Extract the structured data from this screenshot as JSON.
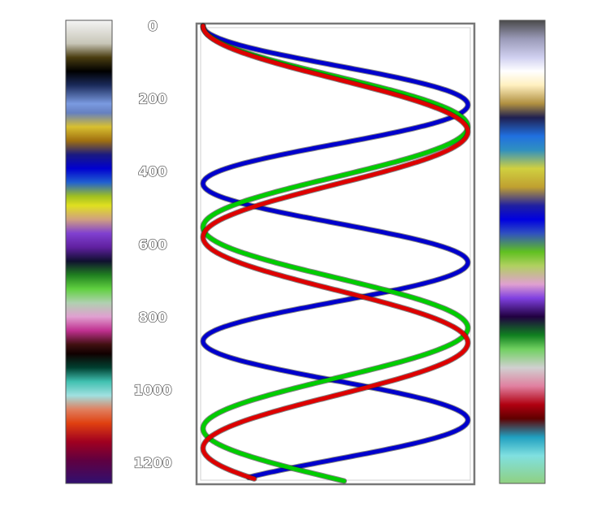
{
  "chart_data": {
    "type": "line",
    "title": "",
    "xlabel": "",
    "ylabel": "",
    "ylim": [
      0,
      1250
    ],
    "y_axis_inverted": true,
    "yticks": [
      0,
      200,
      400,
      600,
      800,
      1000,
      1200
    ],
    "ytick_labels": [
      "0",
      "200",
      "400",
      "600",
      "800",
      "1000",
      "1200"
    ],
    "xlim": [
      -1,
      1
    ],
    "grid": false,
    "legend": "none",
    "series": [
      {
        "color": "#0000cc",
        "amplitude": 1.0,
        "period": 433,
        "phase_deg": 0,
        "depth_range": [
          0,
          1240
        ]
      },
      {
        "color": "#00cc00",
        "amplitude": 1.0,
        "period": 553,
        "phase_deg": 0,
        "depth_range": [
          0,
          1250
        ]
      },
      {
        "color": "#dd0000",
        "amplitude": 1.0,
        "period": 580,
        "phase_deg": 0,
        "depth_range": [
          0,
          1245
        ]
      }
    ],
    "colorbars": [
      {
        "position": "left",
        "stops": [
          [
            0.0,
            "#f4f4f4"
          ],
          [
            0.05,
            "#c8c6b8"
          ],
          [
            0.08,
            "#4a3d10"
          ],
          [
            0.11,
            "#000000"
          ],
          [
            0.14,
            "#1a2a5a"
          ],
          [
            0.18,
            "#7a9ae0"
          ],
          [
            0.2,
            "#6680c0"
          ],
          [
            0.23,
            "#d8c030"
          ],
          [
            0.26,
            "#a07010"
          ],
          [
            0.29,
            "#1a1a80"
          ],
          [
            0.32,
            "#0000d0"
          ],
          [
            0.35,
            "#2060d0"
          ],
          [
            0.38,
            "#a0c020"
          ],
          [
            0.4,
            "#e0e020"
          ],
          [
            0.43,
            "#d0a080"
          ],
          [
            0.46,
            "#8040d0"
          ],
          [
            0.49,
            "#6020a0"
          ],
          [
            0.52,
            "#101030"
          ],
          [
            0.55,
            "#208020"
          ],
          [
            0.58,
            "#60d040"
          ],
          [
            0.61,
            "#b0d0b0"
          ],
          [
            0.64,
            "#e0a0d0"
          ],
          [
            0.67,
            "#c03090"
          ],
          [
            0.7,
            "#401010"
          ],
          [
            0.72,
            "#100000"
          ],
          [
            0.75,
            "#004030"
          ],
          [
            0.78,
            "#40c0b0"
          ],
          [
            0.81,
            "#a0e0e0"
          ],
          [
            0.84,
            "#e08060"
          ],
          [
            0.87,
            "#e04010"
          ],
          [
            0.91,
            "#a00020"
          ],
          [
            0.95,
            "#600040"
          ],
          [
            1.0,
            "#301070"
          ]
        ]
      },
      {
        "position": "right",
        "stops": [
          [
            0.0,
            "#4a4a4a"
          ],
          [
            0.04,
            "#9a9ab8"
          ],
          [
            0.08,
            "#d0d0f0"
          ],
          [
            0.11,
            "#ffffff"
          ],
          [
            0.14,
            "#fff0c0"
          ],
          [
            0.18,
            "#b09040"
          ],
          [
            0.21,
            "#202050"
          ],
          [
            0.25,
            "#2070e0"
          ],
          [
            0.28,
            "#3090c0"
          ],
          [
            0.32,
            "#d0d040"
          ],
          [
            0.36,
            "#c0a030"
          ],
          [
            0.4,
            "#2020a0"
          ],
          [
            0.43,
            "#0000e0"
          ],
          [
            0.46,
            "#3050c0"
          ],
          [
            0.5,
            "#60c020"
          ],
          [
            0.53,
            "#b0d060"
          ],
          [
            0.57,
            "#e0a0d0"
          ],
          [
            0.6,
            "#8040e0"
          ],
          [
            0.64,
            "#200040"
          ],
          [
            0.68,
            "#108020"
          ],
          [
            0.71,
            "#70d060"
          ],
          [
            0.75,
            "#d0d0d0"
          ],
          [
            0.79,
            "#e080a0"
          ],
          [
            0.83,
            "#b00010"
          ],
          [
            0.86,
            "#600000"
          ],
          [
            0.9,
            "#20a0c0"
          ],
          [
            0.94,
            "#80e0e0"
          ],
          [
            1.0,
            "#90d080"
          ]
        ]
      }
    ]
  }
}
